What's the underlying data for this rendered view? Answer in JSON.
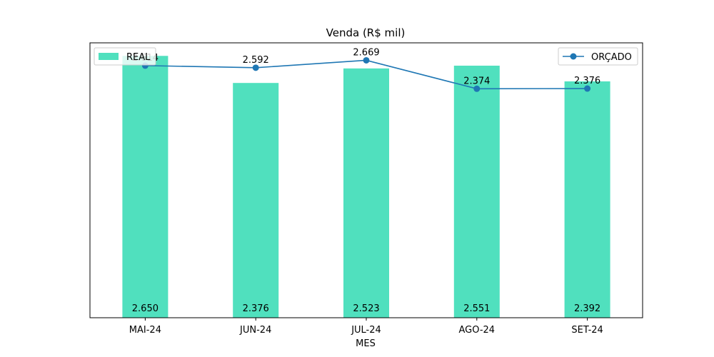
{
  "chart_data": {
    "type": "bar",
    "title": "Venda (R$ mil)",
    "xlabel": "MES",
    "ylabel": "",
    "categories": [
      "MAI-24",
      "JUN-24",
      "JUL-24",
      "AGO-24",
      "SET-24"
    ],
    "series": [
      {
        "name": "REAL",
        "type": "bar",
        "values": [
          2650,
          2376,
          2523,
          2551,
          2392
        ],
        "labels": [
          "2.650",
          "2.376",
          "2.523",
          "2.551",
          "2.392"
        ],
        "color": "#50E0BE"
      },
      {
        "name": "ORÇADO",
        "type": "line",
        "values": [
          2614,
          2592,
          2669,
          2374,
          2376
        ],
        "labels": [
          "2.614",
          "2.592",
          "2.669",
          "2.374",
          "2.376"
        ],
        "color": "#1F77B4"
      }
    ],
    "bar_ylim": [
      0,
      2782
    ],
    "line_ylim": [
      0,
      2850
    ],
    "grid": false,
    "legend": {
      "bar": "top-left",
      "line": "top-right"
    },
    "y_ticks_visible": false
  }
}
